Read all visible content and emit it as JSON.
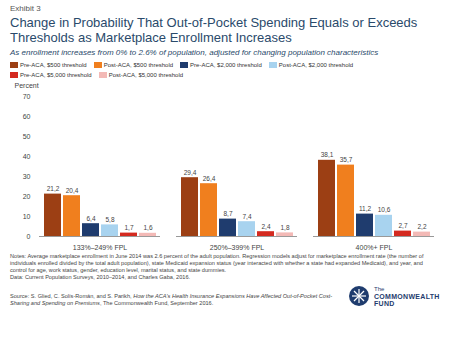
{
  "chart_data": {
    "type": "bar",
    "exhibit": "Exhibit 3",
    "title": "Change in Probability That Out-of-Pocket Spending Equals or Exceeds Thresholds as Marketplace Enrollment Increases",
    "subtitle": "As enrollment increases from 0% to 2.6% of population, adjusted for changing population characteristics",
    "y_label": "Percent",
    "categories": [
      "133%–249% FPL",
      "250%–399% FPL",
      "400%+ FPL"
    ],
    "series": [
      {
        "name": "Pre-ACA, $500 threshold",
        "color": "#9c3f14",
        "values": [
          21.2,
          29.4,
          38.1
        ],
        "value_labels": [
          "21,2",
          "29,4",
          "38,1"
        ]
      },
      {
        "name": "Post-ACA, $500 threshold",
        "color": "#f07f1e",
        "values": [
          20.4,
          26.4,
          35.7
        ],
        "value_labels": [
          "20,4",
          "26,4",
          "35,7"
        ]
      },
      {
        "name": "Pre-ACA, $2,000 threshold",
        "color": "#1f3c6e",
        "values": [
          6.4,
          8.7,
          11.2
        ],
        "value_labels": [
          "6,4",
          "8,7",
          "11,2"
        ]
      },
      {
        "name": "Post-ACA, $2,000 threshold",
        "color": "#a8d3ef",
        "values": [
          5.8,
          7.4,
          10.6
        ],
        "value_labels": [
          "5,8",
          "7,4",
          "10,6"
        ]
      },
      {
        "name": "Pre-ACA, $5,000 threshold",
        "color": "#d42a20",
        "values": [
          1.7,
          2.4,
          2.7
        ],
        "value_labels": [
          "1,7",
          "2,4",
          "2,7"
        ]
      },
      {
        "name": "Post-ACA, $5,000 threshold",
        "color": "#f3b9b6",
        "values": [
          1.6,
          1.8,
          2.2
        ],
        "value_labels": [
          "1,6",
          "1,8",
          "2,2"
        ]
      }
    ],
    "ylim": [
      0,
      70
    ],
    "yticks": [
      0,
      10,
      20,
      30,
      40,
      50,
      60,
      70
    ],
    "grid": false,
    "legend": "top",
    "data_labels": true,
    "notes": "Notes: Average marketplace enrollment in June 2014 was 2.6 percent of the adult population. Regression models adjust for marketplace enrollment rate (the number of individuals enrolled divided by the total adult population), state Medicaid expansion status (year interacted with whether a state had expanded Medicaid), and year, and control for age, work status, gender, education level, marital status, and state dummies.",
    "data_source": "Data: Current Population Surveys, 2010–2014, and Charles Gaba, 2016.",
    "source": {
      "before": "Source: S. Glied, C. Solís-Román, and S. Parikh, ",
      "title": "How the ACA's Health Insurance Expansions Have Affected Out-of-Pocket Cost-Sharing and Spending on Premiums",
      "after": ", The Commonwealth Fund, September 2016."
    },
    "logo": [
      "The",
      "COMMONWEALTH",
      "FUND"
    ]
  }
}
